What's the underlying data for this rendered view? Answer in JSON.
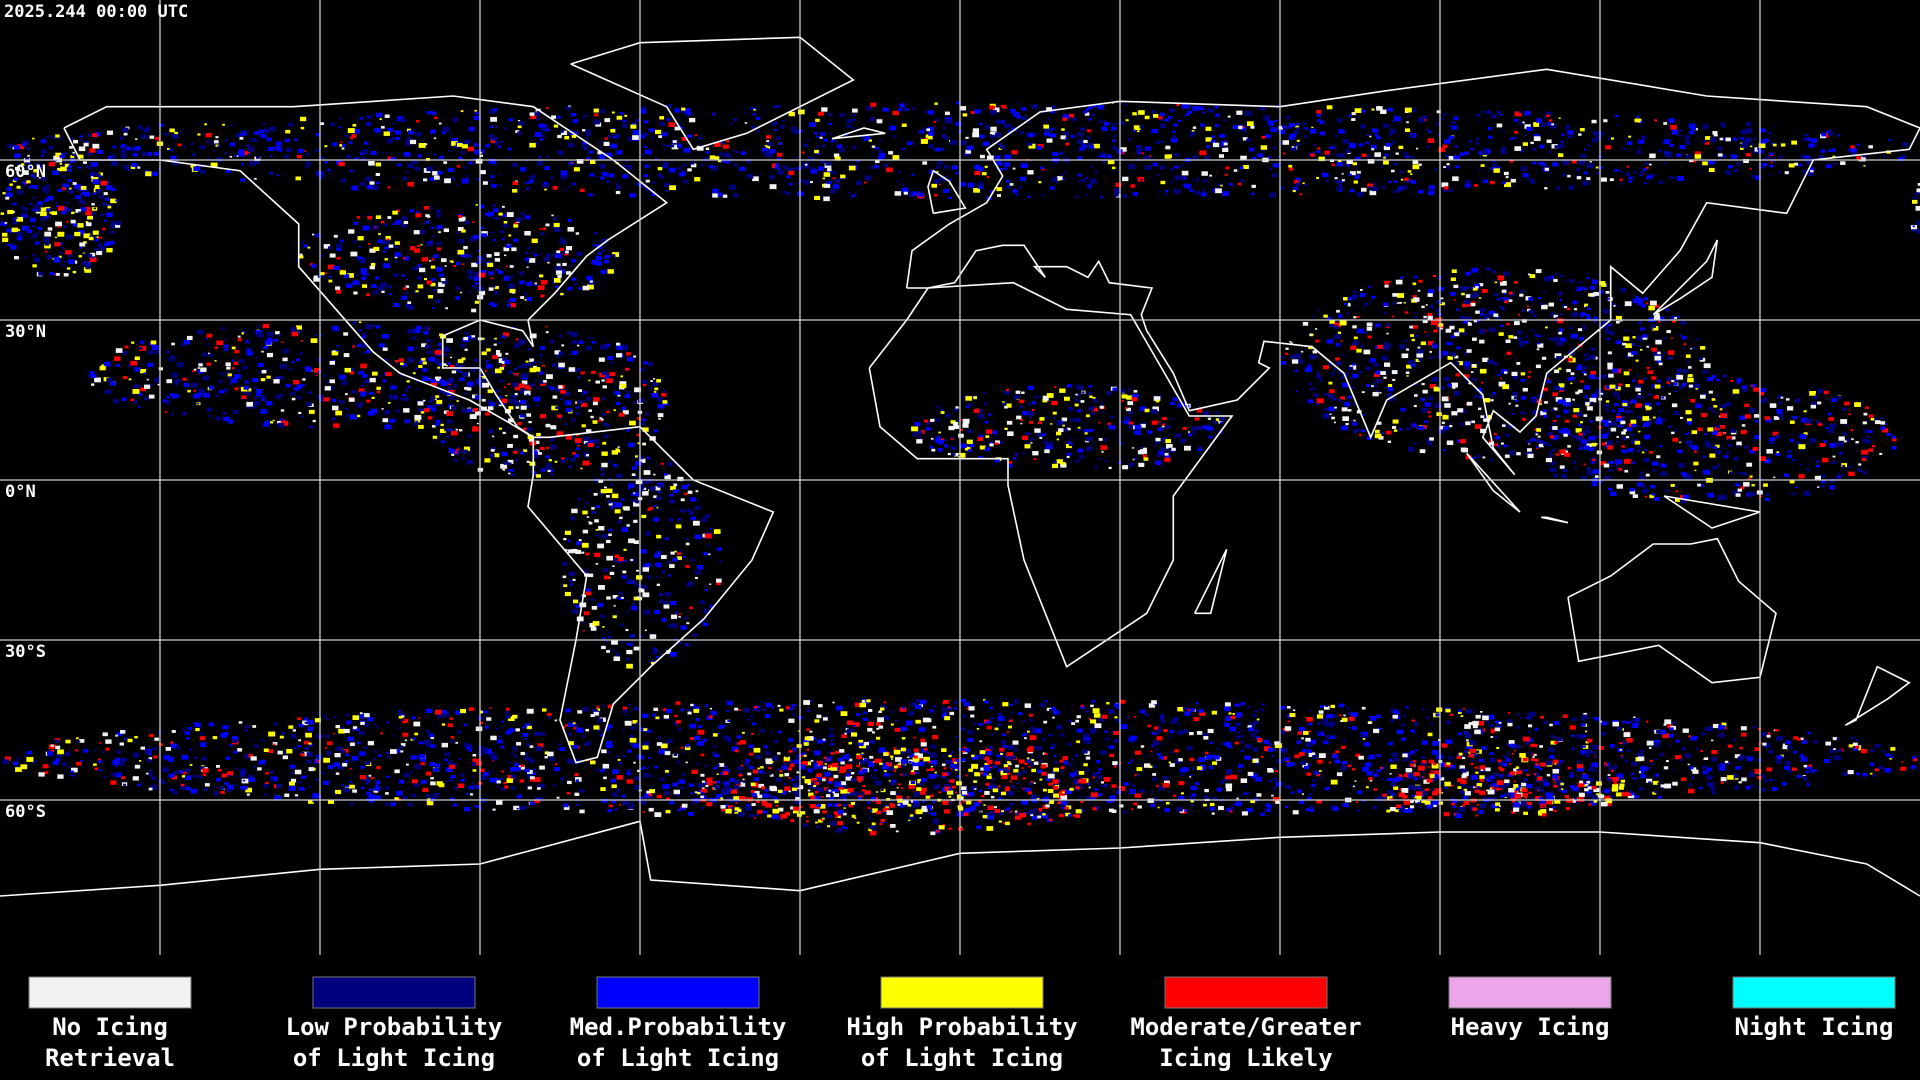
{
  "timestamp": "2025.244 00:00 UTC",
  "latitude_labels": [
    "60°N",
    "30°N",
    "0°N",
    "30°S",
    "60°S"
  ],
  "legend": [
    {
      "label_lines": [
        "No Icing",
        "Retrieval"
      ],
      "color": "#f2f2f2"
    },
    {
      "label_lines": [
        "Low Probability",
        "of Light Icing"
      ],
      "color": "#00007f"
    },
    {
      "label_lines": [
        "Med.Probability",
        "of Light Icing"
      ],
      "color": "#0000ff"
    },
    {
      "label_lines": [
        "High Probability",
        "of Light Icing"
      ],
      "color": "#ffff00"
    },
    {
      "label_lines": [
        "Moderate/Greater",
        "Icing Likely"
      ],
      "color": "#ff0000"
    },
    {
      "label_lines": [
        "Heavy Icing"
      ],
      "color": "#eaa6e8"
    },
    {
      "label_lines": [
        "Night Icing"
      ],
      "color": "#00ffff"
    }
  ]
}
